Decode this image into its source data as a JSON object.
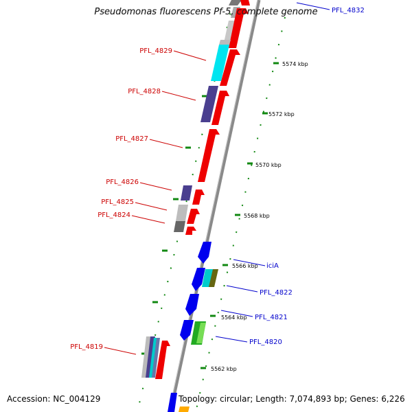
{
  "title": "Pseudomonas fluorescens Pf-5, complete genome",
  "footer": {
    "accession": "Accession: NC_004129",
    "summary": "Topology: circular; Length: 7,074,893 bp; Genes: 6,226"
  },
  "colors": {
    "forward_label": "#cc0000",
    "reverse_label": "#0000cc",
    "backbone": "#888888",
    "tick": "#118811"
  },
  "scale_ticks": [
    "5574 kbp",
    "5572 kbp",
    "5570 kbp",
    "5568 kbp",
    "5566 kbp",
    "5564 kbp",
    "5562 kbp"
  ],
  "forward_labels": [
    "PFL_4829",
    "PFL_4828",
    "PFL_4827",
    "PFL_4826",
    "PFL_4825",
    "PFL_4824",
    "PFL_4819"
  ],
  "reverse_labels": [
    "PFL_4832",
    "iciA",
    "PFL_4822",
    "PFL_4821",
    "PFL_4820"
  ]
}
